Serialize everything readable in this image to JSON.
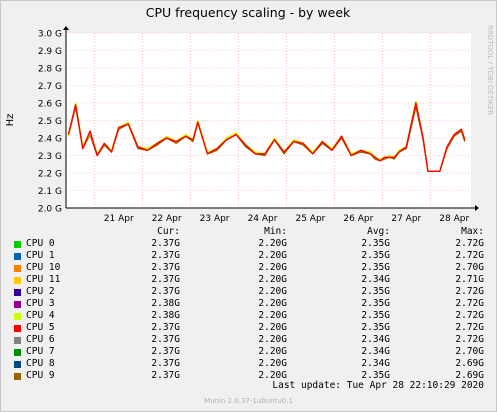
{
  "chart_data": {
    "type": "line",
    "title": "CPU frequency scaling - by week",
    "ylabel": "Hz",
    "side_label": "RRDTOOL / TOBI OETIKER",
    "ylim": [
      2.0,
      3.0
    ],
    "y_ticks": [
      "2.0 G",
      "2.1 G",
      "2.2 G",
      "2.3 G",
      "2.4 G",
      "2.5 G",
      "2.6 G",
      "2.7 G",
      "2.8 G",
      "2.9 G",
      "3.0 G"
    ],
    "x_ticks": [
      "21 Apr",
      "22 Apr",
      "23 Apr",
      "24 Apr",
      "25 Apr",
      "26 Apr",
      "27 Apr",
      "28 Apr"
    ],
    "grid": true,
    "x_days": [
      20.45,
      20.6,
      20.75,
      20.9,
      21.05,
      21.2,
      21.35,
      21.5,
      21.7,
      21.9,
      22.1,
      22.3,
      22.5,
      22.7,
      22.9,
      23.05,
      23.15,
      23.35,
      23.55,
      23.75,
      23.95,
      24.15,
      24.35,
      24.55,
      24.75,
      24.95,
      25.15,
      25.35,
      25.55,
      25.75,
      25.95,
      26.15,
      26.35,
      26.55,
      26.75,
      26.85,
      26.95,
      27.05,
      27.15,
      27.25,
      27.35,
      27.5,
      27.7,
      27.85,
      27.95,
      28.05,
      28.2,
      28.35,
      28.5,
      28.65,
      28.72
    ],
    "series": [
      {
        "name": "CPU 9",
        "color": "#996100",
        "values": [
          2.41,
          2.58,
          2.34,
          2.42,
          2.3,
          2.36,
          2.32,
          2.45,
          2.48,
          2.34,
          2.33,
          2.36,
          2.4,
          2.37,
          2.41,
          2.38,
          2.49,
          2.31,
          2.33,
          2.39,
          2.42,
          2.35,
          2.31,
          2.3,
          2.39,
          2.31,
          2.38,
          2.36,
          2.31,
          2.37,
          2.33,
          2.4,
          2.3,
          2.32,
          2.31,
          2.28,
          2.27,
          2.28,
          2.29,
          2.28,
          2.32,
          2.34,
          2.58,
          2.39,
          2.21,
          2.21,
          2.21,
          2.34,
          2.41,
          2.44,
          2.38
        ]
      },
      {
        "name": "CPU 4",
        "color": "#ccff00",
        "values": [
          2.41,
          2.6,
          2.35,
          2.43,
          2.31,
          2.37,
          2.33,
          2.46,
          2.49,
          2.35,
          2.34,
          2.37,
          2.41,
          2.38,
          2.42,
          2.39,
          2.5,
          2.32,
          2.34,
          2.4,
          2.43,
          2.36,
          2.32,
          2.31,
          2.4,
          2.32,
          2.39,
          2.37,
          2.32,
          2.38,
          2.34,
          2.41,
          2.31,
          2.33,
          2.32,
          2.29,
          2.28,
          2.29,
          2.3,
          2.29,
          2.33,
          2.35,
          2.61,
          2.4,
          2.21,
          2.21,
          2.21,
          2.35,
          2.42,
          2.45,
          2.39
        ]
      },
      {
        "name": "CPU 5",
        "color": "#ff0000",
        "values": [
          2.42,
          2.59,
          2.34,
          2.44,
          2.3,
          2.37,
          2.32,
          2.46,
          2.48,
          2.35,
          2.33,
          2.37,
          2.4,
          2.38,
          2.41,
          2.39,
          2.49,
          2.31,
          2.34,
          2.39,
          2.42,
          2.36,
          2.31,
          2.31,
          2.39,
          2.32,
          2.38,
          2.37,
          2.31,
          2.38,
          2.33,
          2.41,
          2.3,
          2.33,
          2.31,
          2.29,
          2.27,
          2.29,
          2.29,
          2.29,
          2.32,
          2.35,
          2.6,
          2.4,
          2.21,
          2.21,
          2.21,
          2.35,
          2.42,
          2.45,
          2.39
        ]
      }
    ]
  },
  "legend": {
    "headers": [
      "Cur:",
      "Min:",
      "Avg:",
      "Max:"
    ],
    "rows": [
      {
        "name": "CPU 0",
        "color": "#00cc00",
        "cur": "2.37G",
        "min": "2.20G",
        "avg": "2.35G",
        "max": "2.72G"
      },
      {
        "name": "CPU 1",
        "color": "#0066b3",
        "cur": "2.37G",
        "min": "2.20G",
        "avg": "2.35G",
        "max": "2.72G"
      },
      {
        "name": "CPU 10",
        "color": "#ff8000",
        "cur": "2.37G",
        "min": "2.20G",
        "avg": "2.35G",
        "max": "2.70G"
      },
      {
        "name": "CPU 11",
        "color": "#ffcc00",
        "cur": "2.37G",
        "min": "2.20G",
        "avg": "2.34G",
        "max": "2.71G"
      },
      {
        "name": "CPU 2",
        "color": "#330099",
        "cur": "2.37G",
        "min": "2.20G",
        "avg": "2.35G",
        "max": "2.72G"
      },
      {
        "name": "CPU 3",
        "color": "#990099",
        "cur": "2.38G",
        "min": "2.20G",
        "avg": "2.35G",
        "max": "2.72G"
      },
      {
        "name": "CPU 4",
        "color": "#ccff00",
        "cur": "2.38G",
        "min": "2.20G",
        "avg": "2.35G",
        "max": "2.72G"
      },
      {
        "name": "CPU 5",
        "color": "#ff0000",
        "cur": "2.37G",
        "min": "2.20G",
        "avg": "2.35G",
        "max": "2.72G"
      },
      {
        "name": "CPU 6",
        "color": "#808080",
        "cur": "2.37G",
        "min": "2.20G",
        "avg": "2.34G",
        "max": "2.72G"
      },
      {
        "name": "CPU 7",
        "color": "#008f00",
        "cur": "2.37G",
        "min": "2.20G",
        "avg": "2.34G",
        "max": "2.70G"
      },
      {
        "name": "CPU 8",
        "color": "#00487d",
        "cur": "2.37G",
        "min": "2.20G",
        "avg": "2.34G",
        "max": "2.69G"
      },
      {
        "name": "CPU 9",
        "color": "#996100",
        "cur": "2.37G",
        "min": "2.20G",
        "avg": "2.35G",
        "max": "2.69G"
      }
    ]
  },
  "footer": {
    "last_update": "Last update: Tue Apr 28 22:10:29 2020",
    "version": "Munin 2.0.37-1ubuntu0.1"
  }
}
